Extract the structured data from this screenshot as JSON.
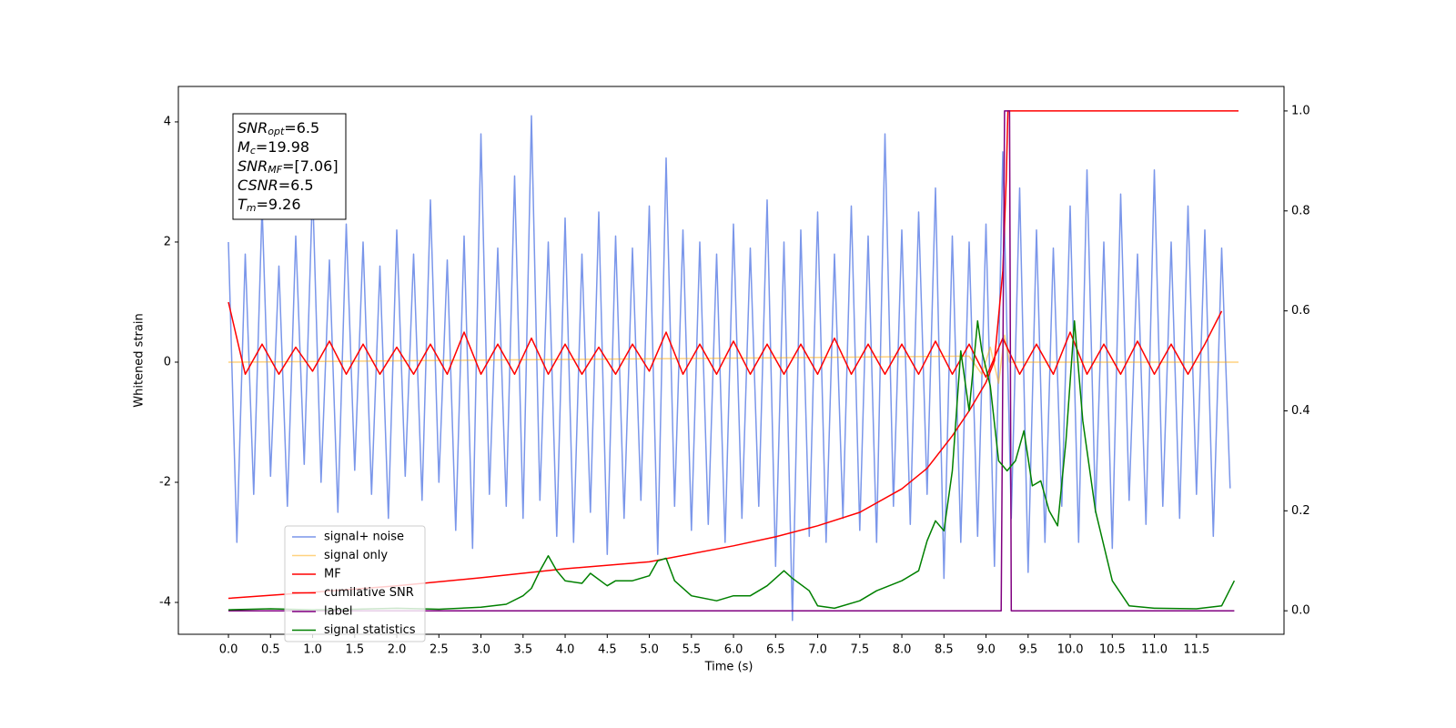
{
  "chart_data": {
    "type": "line",
    "xlabel": "Time (s)",
    "ylabel": "Whitened strain",
    "xlim": [
      -0.595,
      12.54
    ],
    "ylim": [
      -4.53,
      4.59
    ],
    "y2lim": [
      -0.047,
      1.049
    ],
    "xticks": [
      {
        "value": 0,
        "label": "0.0"
      },
      0.5,
      {
        "value": 1,
        "label": "1.0"
      },
      1.5,
      {
        "value": 2,
        "label": "2.0"
      },
      2.5,
      {
        "value": 3,
        "label": "3.0"
      },
      3.5,
      {
        "value": 4,
        "label": "4.0"
      },
      4.5,
      {
        "value": 5,
        "label": "5.0"
      },
      5.5,
      {
        "value": 6,
        "label": "6.0"
      },
      6.5,
      {
        "value": 7,
        "label": "7.0"
      },
      7.5,
      {
        "value": 8,
        "label": "8.0"
      },
      8.5,
      {
        "value": 9,
        "label": "9.0"
      },
      9.5,
      {
        "value": 10,
        "label": "10.0"
      },
      10.5,
      {
        "value": 11,
        "label": "11.0"
      },
      11.5
    ],
    "yticks": [
      -4,
      -2,
      0,
      2,
      4
    ],
    "y2ticks": [
      {
        "value": 0,
        "label": "0.0"
      },
      0.2,
      0.4,
      0.6,
      0.8,
      {
        "value": 1,
        "label": "1.0"
      }
    ],
    "legend": "lower left",
    "annotation": [
      {
        "symbol": "SNR",
        "sub": "opt",
        "text": "=6.5"
      },
      {
        "symbol": "M",
        "sub": "c",
        "text": "=19.98"
      },
      {
        "symbol": "SNR",
        "sub": "MF",
        "text": "=[7.06]"
      },
      {
        "symbol": "CSNR",
        "sub": "",
        "text": "=6.5"
      },
      {
        "symbol": "T",
        "sub": "m",
        "text": "=9.26"
      }
    ],
    "series": [
      {
        "name": "signal+ noise",
        "color": "#4169e1",
        "alpha": 0.7,
        "x": [
          0,
          0.1,
          0.2,
          0.3,
          0.4,
          0.5,
          0.6,
          0.7,
          0.8,
          0.9,
          1,
          1.1,
          1.2,
          1.3,
          1.4,
          1.5,
          1.6,
          1.7,
          1.8,
          1.9,
          2,
          2.1,
          2.2,
          2.3,
          2.4,
          2.5,
          2.6,
          2.7,
          2.8,
          2.9,
          3,
          3.1,
          3.2,
          3.3,
          3.4,
          3.5,
          3.6,
          3.7,
          3.8,
          3.9,
          4,
          4.1,
          4.2,
          4.3,
          4.4,
          4.5,
          4.6,
          4.7,
          4.8,
          4.9,
          5,
          5.1,
          5.2,
          5.3,
          5.4,
          5.5,
          5.6,
          5.7,
          5.8,
          5.9,
          6,
          6.1,
          6.2,
          6.3,
          6.4,
          6.5,
          6.6,
          6.7,
          6.8,
          6.9,
          7,
          7.1,
          7.2,
          7.3,
          7.4,
          7.5,
          7.6,
          7.7,
          7.8,
          7.9,
          8,
          8.1,
          8.2,
          8.3,
          8.4,
          8.5,
          8.6,
          8.7,
          8.8,
          8.9,
          9,
          9.1,
          9.2,
          9.3,
          9.4,
          9.5,
          9.6,
          9.7,
          9.8,
          9.9,
          10,
          10.1,
          10.2,
          10.3,
          10.4,
          10.5,
          10.6,
          10.7,
          10.8,
          10.9,
          11,
          11.1,
          11.2,
          11.3,
          11.4,
          11.5,
          11.6,
          11.7,
          11.8,
          11.9
        ],
        "values": [
          2.0,
          -3.0,
          1.8,
          -2.2,
          2.6,
          -1.9,
          1.6,
          -2.4,
          2.1,
          -1.7,
          2.9,
          -2.0,
          1.7,
          -2.5,
          2.3,
          -1.8,
          2.0,
          -2.2,
          1.6,
          -2.6,
          2.2,
          -1.9,
          1.8,
          -2.3,
          2.7,
          -2.0,
          1.7,
          -2.8,
          2.1,
          -3.1,
          3.8,
          -2.2,
          1.9,
          -2.4,
          3.1,
          -2.6,
          4.1,
          -2.3,
          2.0,
          -2.9,
          2.4,
          -3.0,
          1.8,
          -2.5,
          2.5,
          -3.2,
          2.1,
          -2.6,
          1.9,
          -2.3,
          2.6,
          -3.2,
          3.4,
          -2.4,
          2.2,
          -2.8,
          2.0,
          -2.7,
          1.8,
          -3.0,
          2.3,
          -2.6,
          1.9,
          -2.4,
          2.7,
          -3.4,
          2.0,
          -4.3,
          2.2,
          -2.9,
          2.5,
          -3.0,
          1.8,
          -2.6,
          2.6,
          -2.8,
          2.1,
          -3.0,
          3.8,
          -2.4,
          2.2,
          -2.7,
          2.5,
          -2.2,
          2.9,
          -3.6,
          2.1,
          -3.0,
          2.0,
          -2.9,
          2.3,
          -3.4,
          3.5,
          -2.6,
          2.9,
          -3.5,
          2.2,
          -3.0,
          1.9,
          -2.4,
          2.6,
          -3.0,
          3.2,
          -2.5,
          2.0,
          -3.1,
          2.8,
          -2.3,
          1.8,
          -2.7,
          3.2,
          -2.4,
          2.0,
          -2.6,
          2.6,
          -2.2,
          2.2,
          -2.9,
          1.9,
          -2.1
        ]
      },
      {
        "name": "signal only",
        "color": "#ffa500",
        "alpha": 0.5,
        "x": [
          0,
          8.8,
          8.95,
          9.05,
          9.15,
          9.22,
          9.28,
          12
        ],
        "values": [
          0,
          0.1,
          -0.2,
          0.25,
          -0.35,
          0.45,
          0,
          0
        ]
      },
      {
        "name": "MF",
        "color": "#ff0000",
        "x": [
          0,
          0.2,
          0.4,
          0.6,
          0.8,
          1,
          1.2,
          1.4,
          1.6,
          1.8,
          2,
          2.2,
          2.4,
          2.6,
          2.8,
          3,
          3.2,
          3.4,
          3.6,
          3.8,
          4,
          4.2,
          4.4,
          4.6,
          4.8,
          5,
          5.2,
          5.4,
          5.6,
          5.8,
          6,
          6.2,
          6.4,
          6.6,
          6.8,
          7,
          7.2,
          7.4,
          7.6,
          7.8,
          8,
          8.2,
          8.4,
          8.6,
          8.8,
          9,
          9.2,
          9.4,
          9.6,
          9.8,
          10,
          10.2,
          10.4,
          10.6,
          10.8,
          11,
          11.2,
          11.4,
          11.6,
          11.8
        ],
        "values": [
          1.0,
          -0.2,
          0.3,
          -0.2,
          0.25,
          -0.15,
          0.35,
          -0.2,
          0.3,
          -0.2,
          0.25,
          -0.2,
          0.3,
          -0.2,
          0.5,
          -0.2,
          0.3,
          -0.2,
          0.4,
          -0.2,
          0.3,
          -0.2,
          0.25,
          -0.2,
          0.3,
          -0.15,
          0.5,
          -0.2,
          0.3,
          -0.2,
          0.35,
          -0.2,
          0.3,
          -0.2,
          0.3,
          -0.2,
          0.4,
          -0.2,
          0.3,
          -0.2,
          0.3,
          -0.2,
          0.35,
          -0.2,
          0.3,
          -0.25,
          0.4,
          -0.2,
          0.3,
          -0.2,
          0.5,
          -0.2,
          0.3,
          -0.2,
          0.35,
          -0.2,
          0.3,
          -0.2,
          0.3,
          0.85
        ]
      },
      {
        "name": "cumilative SNR",
        "color": "#ff0000",
        "axis": "y2",
        "x": [
          0,
          1,
          2,
          3,
          4,
          5,
          6,
          6.5,
          7,
          7.5,
          8,
          8.3,
          8.6,
          8.8,
          9.0,
          9.1,
          9.2,
          9.24,
          9.26,
          12
        ],
        "values": [
          0.025,
          0.037,
          0.05,
          0.066,
          0.084,
          0.098,
          0.13,
          0.148,
          0.17,
          0.197,
          0.244,
          0.285,
          0.35,
          0.4,
          0.457,
          0.5,
          0.68,
          0.86,
          1.0,
          1.0
        ]
      },
      {
        "name": "label",
        "color": "#800080",
        "axis": "y2",
        "x": [
          0,
          9.18,
          9.22,
          9.28,
          9.3,
          11.95
        ],
        "values": [
          0,
          0,
          1,
          1,
          0,
          0
        ]
      },
      {
        "name": "signal statistics",
        "color": "#008000",
        "axis": "y2",
        "x": [
          0,
          0.5,
          1,
          1.5,
          2,
          2.5,
          3,
          3.3,
          3.5,
          3.6,
          3.7,
          3.8,
          3.9,
          4.0,
          4.2,
          4.3,
          4.5,
          4.6,
          4.8,
          5.0,
          5.1,
          5.2,
          5.3,
          5.5,
          5.8,
          6.0,
          6.2,
          6.4,
          6.6,
          6.7,
          6.9,
          7.0,
          7.2,
          7.5,
          7.7,
          8.0,
          8.2,
          8.3,
          8.4,
          8.5,
          8.6,
          8.7,
          8.8,
          8.9,
          8.95,
          9.05,
          9.15,
          9.25,
          9.35,
          9.45,
          9.55,
          9.65,
          9.75,
          9.85,
          9.95,
          10.05,
          10.15,
          10.3,
          10.5,
          10.7,
          11.0,
          11.5,
          11.8,
          11.95
        ],
        "values": [
          0.002,
          0.004,
          0.002,
          0.003,
          0.005,
          0.003,
          0.007,
          0.013,
          0.03,
          0.045,
          0.08,
          0.11,
          0.08,
          0.06,
          0.055,
          0.075,
          0.05,
          0.06,
          0.06,
          0.07,
          0.1,
          0.105,
          0.06,
          0.03,
          0.02,
          0.03,
          0.03,
          0.05,
          0.08,
          0.065,
          0.04,
          0.01,
          0.005,
          0.02,
          0.04,
          0.06,
          0.08,
          0.14,
          0.18,
          0.16,
          0.28,
          0.52,
          0.4,
          0.58,
          0.52,
          0.45,
          0.3,
          0.28,
          0.3,
          0.36,
          0.25,
          0.26,
          0.2,
          0.17,
          0.34,
          0.58,
          0.38,
          0.2,
          0.06,
          0.01,
          0.005,
          0.004,
          0.01,
          0.06
        ]
      }
    ]
  }
}
